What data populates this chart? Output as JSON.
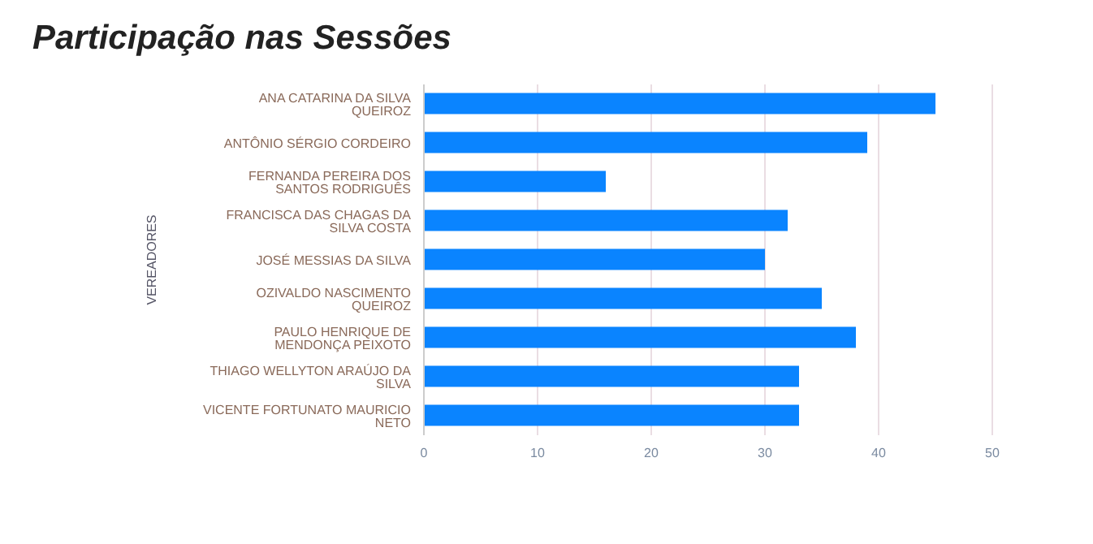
{
  "chart_data": {
    "type": "bar",
    "orientation": "horizontal",
    "title": "Participação nas Sessões",
    "ylabel": "VEREADORES",
    "categories": [
      "ANA CATARINA DA SILVA QUEIROZ",
      "ANTÔNIO SÉRGIO CORDEIRO",
      "FERNANDA PEREIRA DOS SANTOS RODRIGUÊS",
      "FRANCISCA DAS CHAGAS DA SILVA COSTA",
      "JOSÉ MESSIAS DA SILVA",
      "OZIVALDO NASCIMENTO QUEIROZ",
      "PAULO HENRIQUE DE MENDONÇA PEIXOTO",
      "THIAGO WELLYTON ARAÚJO DA SILVA",
      "VICENTE FORTUNATO MAURICIO NETO"
    ],
    "values": [
      45,
      39,
      16,
      32,
      30,
      35,
      38,
      33,
      33
    ],
    "color": "#0a84ff",
    "xlim": [
      0,
      50
    ],
    "xticks": [
      0,
      10,
      20,
      30,
      40,
      50
    ],
    "grid": "x"
  }
}
